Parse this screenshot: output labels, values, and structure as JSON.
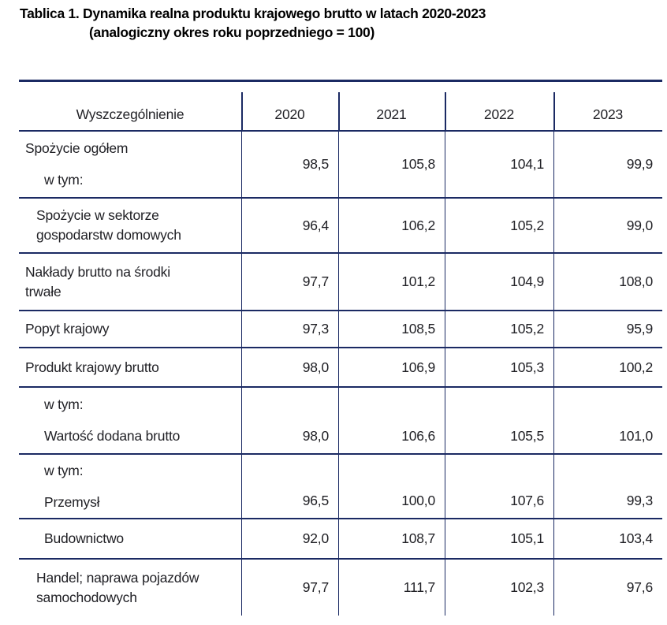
{
  "title": {
    "line1": "Tablica 1. Dynamika realna produktu krajowego brutto w latach 2020-2023",
    "line2": "(analogiczny okres roku poprzedniego = 100)"
  },
  "table": {
    "header": {
      "label": "Wyszczególnienie",
      "years": [
        "2020",
        "2021",
        "2022",
        "2023"
      ]
    },
    "rows": [
      {
        "lines": [
          {
            "text": "Spożycie ogółem",
            "indent": 0
          },
          {
            "text": "w tym:",
            "indent": 2
          }
        ],
        "values": [
          "98,5",
          "105,8",
          "104,1",
          "99,9"
        ]
      },
      {
        "lines": [
          {
            "text": "Spożycie w sektorze",
            "indent": 1
          },
          {
            "text": "gospodarstw domowych",
            "indent": 1
          }
        ],
        "values": [
          "96,4",
          "106,2",
          "105,2",
          "99,0"
        ]
      },
      {
        "lines": [
          {
            "text": "Nakłady brutto na środki",
            "indent": 0
          },
          {
            "text": "trwałe",
            "indent": 0
          }
        ],
        "values": [
          "97,7",
          "101,2",
          "104,9",
          "108,0"
        ]
      },
      {
        "lines": [
          {
            "text": "Popyt krajowy",
            "indent": 0
          }
        ],
        "values": [
          "97,3",
          "108,5",
          "105,2",
          "95,9"
        ]
      },
      {
        "lines": [
          {
            "text": "Produkt krajowy brutto",
            "indent": 0
          }
        ],
        "values": [
          "98,0",
          "106,9",
          "105,3",
          "100,2"
        ]
      },
      {
        "lines": [
          {
            "text": "w tym:",
            "indent": 2
          },
          {
            "text": "Wartość dodana brutto",
            "indent": 2
          }
        ],
        "values": [
          "98,0",
          "106,6",
          "105,5",
          "101,0"
        ]
      },
      {
        "lines": [
          {
            "text": "w tym:",
            "indent": 2
          },
          {
            "text": "Przemysł",
            "indent": 2
          }
        ],
        "values": [
          "96,5",
          "100,0",
          "107,6",
          "99,3"
        ]
      },
      {
        "lines": [
          {
            "text": "Budownictwo",
            "indent": 2
          }
        ],
        "values": [
          "92,0",
          "108,7",
          "105,1",
          "103,4"
        ]
      },
      {
        "lines": [
          {
            "text": "Handel; naprawa pojazdów",
            "indent": 1
          },
          {
            "text": "samochodowych",
            "indent": 1
          }
        ],
        "values": [
          "97,7",
          "111,7",
          "102,3",
          "97,6"
        ]
      }
    ]
  },
  "colors": {
    "table_border": "#1b2a63",
    "body_text": "#212126",
    "title_text": "#000000"
  }
}
